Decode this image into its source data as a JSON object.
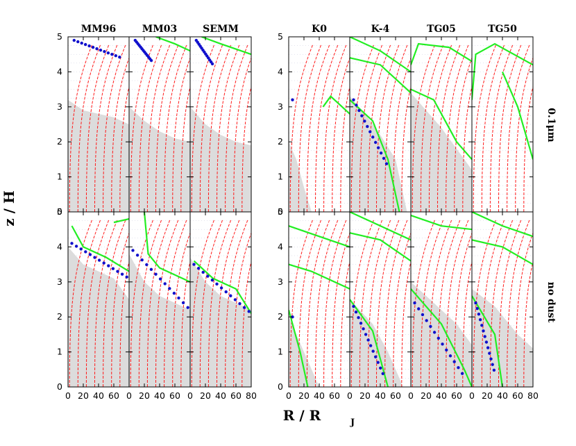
{
  "chart_data": {
    "type": "line",
    "panel_titles": [
      "MM96",
      "MM03",
      "SEMM",
      "K0",
      "K-4",
      "TG05",
      "TG50"
    ],
    "row_labels": [
      "0.1μm",
      "no dust"
    ],
    "xlabel": "R / R",
    "xlabel_sub": "J",
    "ylabel": "z / H",
    "xlim": [
      0,
      80
    ],
    "ylim": [
      0,
      5
    ],
    "x_ticks": [
      "0",
      "20",
      "40",
      "60",
      "80"
    ],
    "y_ticks": [
      "0",
      "1",
      "2",
      "3",
      "4",
      "5"
    ],
    "colors": {
      "contour_red": "#ff1a1a",
      "contour_green": "#22ee22",
      "region_gray": "#dcdcdc",
      "markers_blue": "#1010cc",
      "grid_dots": "#c8c8dc"
    },
    "panels": [
      {
        "name": "MM96",
        "row": "0.1μm",
        "gray_boundary": [
          [
            0,
            3.2
          ],
          [
            20,
            2.9
          ],
          [
            40,
            2.8
          ],
          [
            60,
            2.7
          ],
          [
            80,
            2.5
          ]
        ],
        "green_contours": [],
        "blue_start": [
          [
            8,
            4.9
          ],
          [
            70,
            4.4
          ]
        ]
      },
      {
        "name": "MM03",
        "row": "0.1μm",
        "gray_boundary": [
          [
            0,
            3.0
          ],
          [
            20,
            2.6
          ],
          [
            40,
            2.3
          ],
          [
            60,
            2.1
          ],
          [
            80,
            2.0
          ]
        ],
        "green_contours": [
          [
            [
              35,
              5
            ],
            [
              60,
              4.8
            ],
            [
              80,
              4.6
            ]
          ]
        ],
        "blue_start": [
          [
            8,
            4.9
          ],
          [
            30,
            4.3
          ]
        ]
      },
      {
        "name": "SEMM",
        "row": "0.1μm",
        "gray_boundary": [
          [
            0,
            3.0
          ],
          [
            20,
            2.5
          ],
          [
            40,
            2.2
          ],
          [
            60,
            2.0
          ],
          [
            80,
            1.9
          ]
        ],
        "green_contours": [
          [
            [
              15,
              5
            ],
            [
              40,
              4.8
            ],
            [
              80,
              4.5
            ]
          ]
        ],
        "blue_start": [
          [
            8,
            4.9
          ],
          [
            30,
            4.2
          ]
        ]
      },
      {
        "name": "K0",
        "row": "0.1μm",
        "gray_boundary": [
          [
            0,
            2.0
          ],
          [
            10,
            1.5
          ],
          [
            20,
            0.7
          ],
          [
            30,
            0
          ]
        ],
        "green_contours": [
          [
            [
              45,
              3.0
            ],
            [
              55,
              3.3
            ],
            [
              70,
              3.0
            ],
            [
              80,
              2.8
            ]
          ]
        ],
        "blue_start": [
          [
            5,
            3.2
          ]
        ]
      },
      {
        "name": "K-4",
        "row": "0.1μm",
        "gray_boundary": [
          [
            0,
            3.3
          ],
          [
            20,
            2.8
          ],
          [
            40,
            2.2
          ],
          [
            60,
            1.5
          ],
          [
            75,
            0
          ]
        ],
        "green_contours": [
          [
            [
              0,
              5.0
            ],
            [
              40,
              4.6
            ],
            [
              80,
              4.0
            ]
          ],
          [
            [
              0,
              4.4
            ],
            [
              40,
              4.2
            ],
            [
              80,
              3.4
            ]
          ],
          [
            [
              0,
              3.2
            ],
            [
              30,
              2.6
            ],
            [
              50,
              1.5
            ],
            [
              65,
              0
            ]
          ]
        ],
        "blue_start": [
          [
            5,
            3.2
          ],
          [
            50,
            1.3
          ]
        ]
      },
      {
        "name": "TG05",
        "row": "0.1μm",
        "gray_boundary": [
          [
            0,
            3.4
          ],
          [
            20,
            2.9
          ],
          [
            40,
            2.4
          ],
          [
            60,
            1.8
          ],
          [
            80,
            1.2
          ]
        ],
        "green_contours": [
          [
            [
              0,
              4.2
            ],
            [
              10,
              4.8
            ],
            [
              50,
              4.7
            ],
            [
              80,
              4.3
            ]
          ],
          [
            [
              0,
              3.5
            ],
            [
              30,
              3.2
            ],
            [
              60,
              2.0
            ],
            [
              80,
              1.5
            ]
          ]
        ],
        "blue_start": []
      },
      {
        "name": "TG50",
        "row": "0.1μm",
        "gray_boundary": [],
        "green_contours": [
          [
            [
              0,
              3.2
            ],
            [
              5,
              4.5
            ],
            [
              30,
              4.8
            ],
            [
              80,
              4.2
            ]
          ],
          [
            [
              40,
              4.0
            ],
            [
              60,
              3.0
            ],
            [
              80,
              1.5
            ]
          ]
        ],
        "blue_start": []
      },
      {
        "name": "MM96",
        "row": "no dust",
        "gray_boundary": [
          [
            0,
            4.0
          ],
          [
            20,
            3.5
          ],
          [
            40,
            3.3
          ],
          [
            60,
            3.1
          ],
          [
            80,
            2.5
          ]
        ],
        "green_contours": [
          [
            [
              5,
              4.6
            ],
            [
              20,
              4.0
            ],
            [
              50,
              3.7
            ],
            [
              80,
              3.3
            ]
          ],
          [
            [
              60,
              4.7
            ],
            [
              80,
              4.8
            ]
          ]
        ],
        "blue_start": [
          [
            5,
            4.1
          ],
          [
            80,
            3.1
          ]
        ]
      },
      {
        "name": "MM03",
        "row": "no dust",
        "gray_boundary": [
          [
            0,
            3.8
          ],
          [
            20,
            3.0
          ],
          [
            40,
            2.6
          ],
          [
            60,
            2.4
          ],
          [
            80,
            2.2
          ]
        ],
        "green_contours": [
          [
            [
              20,
              5
            ],
            [
              25,
              3.8
            ],
            [
              40,
              3.4
            ],
            [
              80,
              3.0
            ]
          ]
        ],
        "blue_start": [
          [
            5,
            3.9
          ],
          [
            80,
            2.2
          ]
        ]
      },
      {
        "name": "SEMM",
        "row": "no dust",
        "gray_boundary": [
          [
            0,
            3.7
          ],
          [
            20,
            3.0
          ],
          [
            40,
            2.6
          ],
          [
            60,
            2.4
          ],
          [
            80,
            2.2
          ]
        ],
        "green_contours": [
          [
            [
              5,
              3.6
            ],
            [
              30,
              3.1
            ],
            [
              60,
              2.8
            ],
            [
              80,
              2.1
            ]
          ]
        ],
        "blue_start": [
          [
            5,
            3.5
          ],
          [
            80,
            2.1
          ]
        ]
      },
      {
        "name": "K0",
        "row": "no dust",
        "gray_boundary": [
          [
            0,
            2.0
          ],
          [
            20,
            1.0
          ],
          [
            40,
            0
          ]
        ],
        "green_contours": [
          [
            [
              0,
              4.6
            ],
            [
              40,
              4.3
            ],
            [
              80,
              4.0
            ]
          ],
          [
            [
              0,
              3.5
            ],
            [
              30,
              3.3
            ],
            [
              80,
              2.8
            ]
          ],
          [
            [
              0,
              2.2
            ],
            [
              15,
              1.0
            ],
            [
              25,
              0
            ]
          ]
        ],
        "blue_start": [
          [
            5,
            2.0
          ]
        ]
      },
      {
        "name": "K-4",
        "row": "no dust",
        "gray_boundary": [
          [
            0,
            2.5
          ],
          [
            30,
            1.8
          ],
          [
            50,
            1.0
          ],
          [
            70,
            0
          ]
        ],
        "green_contours": [
          [
            [
              0,
              5.0
            ],
            [
              40,
              4.6
            ],
            [
              80,
              4.2
            ]
          ],
          [
            [
              0,
              4.4
            ],
            [
              40,
              4.2
            ],
            [
              80,
              3.6
            ]
          ],
          [
            [
              0,
              2.5
            ],
            [
              30,
              1.6
            ],
            [
              50,
              0
            ]
          ]
        ],
        "blue_start": [
          [
            5,
            2.3
          ],
          [
            45,
            0.3
          ]
        ]
      },
      {
        "name": "TG05",
        "row": "no dust",
        "gray_boundary": [
          [
            0,
            3.0
          ],
          [
            30,
            2.4
          ],
          [
            60,
            1.8
          ],
          [
            80,
            1.2
          ]
        ],
        "green_contours": [
          [
            [
              0,
              4.9
            ],
            [
              40,
              4.6
            ],
            [
              80,
              4.5
            ]
          ],
          [
            [
              0,
              2.8
            ],
            [
              40,
              1.8
            ],
            [
              70,
              0.5
            ],
            [
              80,
              0
            ]
          ]
        ],
        "blue_start": [
          [
            5,
            2.4
          ],
          [
            70,
            0.3
          ]
        ]
      },
      {
        "name": "TG50",
        "row": "no dust",
        "gray_boundary": [
          [
            0,
            2.8
          ],
          [
            30,
            2.3
          ],
          [
            60,
            1.5
          ],
          [
            80,
            1.1
          ]
        ],
        "green_contours": [
          [
            [
              0,
              5.0
            ],
            [
              40,
              4.6
            ],
            [
              80,
              4.3
            ]
          ],
          [
            [
              0,
              4.2
            ],
            [
              40,
              4.0
            ],
            [
              80,
              3.5
            ]
          ],
          [
            [
              0,
              2.6
            ],
            [
              30,
              1.5
            ],
            [
              40,
              0
            ]
          ]
        ],
        "blue_start": [
          [
            5,
            2.4
          ],
          [
            30,
            0.4
          ]
        ]
      }
    ]
  }
}
